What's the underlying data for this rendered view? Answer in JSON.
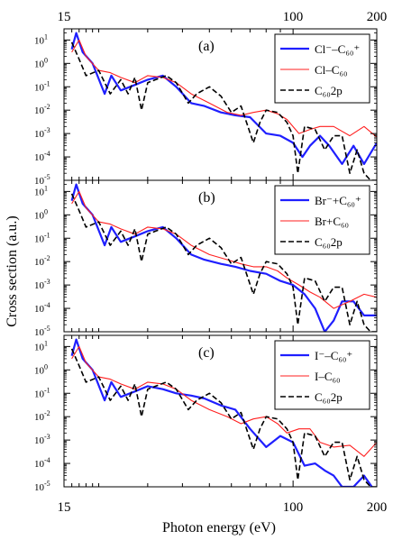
{
  "chart_data": {
    "type": "line",
    "x_scale": "log",
    "y_scale": "log",
    "xlim": [
      15,
      200
    ],
    "ylim": [
      1e-05,
      30
    ],
    "xlabel": "Photon energy (eV)",
    "ylabel": "Cross section (a.u.)",
    "x_tick_labels": [
      "15",
      "100",
      "200"
    ],
    "y_tick_labels": [
      "10",
      "10",
      "10",
      "10",
      "10",
      "10",
      "10"
    ],
    "y_tick_exponents": [
      "-5",
      "-4",
      "-3",
      "-2",
      "-1",
      "0",
      "1"
    ],
    "colors": {
      "anion": "#1f1fff",
      "neutral": "#ff1f1f",
      "c60": "#000000"
    },
    "panels": [
      {
        "label": "(a)",
        "legend_placement": "top-right",
        "series": [
          {
            "name": "Cl⁻–C₆₀⁺",
            "style": "anion",
            "x": [
              16,
              16.6,
              17.5,
              19,
              21,
              22.2,
              24,
              27,
              30,
              34,
              38,
              43,
              48,
              55,
              62,
              70,
              80,
              90,
              100,
              108,
              115,
              125,
              135,
              150,
              165,
              180,
              200
            ],
            "y": [
              4,
              20,
              3,
              1,
              0.05,
              0.3,
              0.07,
              0.12,
              0.2,
              0.3,
              0.1,
              0.02,
              0.015,
              0.008,
              0.006,
              0.005,
              0.001,
              0.0008,
              0.0004,
              0.0001,
              0.0003,
              0.0008,
              0.0003,
              5e-05,
              0.0003,
              5e-05,
              0.0004
            ]
          },
          {
            "name": "Cl–C₆₀",
            "style": "neutral",
            "x": [
              16,
              17,
              18,
              20,
              22,
              24,
              27,
              30,
              34,
              38,
              43,
              50,
              58,
              65,
              72,
              80,
              88,
              95,
              105,
              115,
              125,
              140,
              160,
              180,
              200
            ],
            "y": [
              3,
              10,
              2,
              0.5,
              0.4,
              0.25,
              0.15,
              0.3,
              0.25,
              0.15,
              0.05,
              0.02,
              0.008,
              0.006,
              0.008,
              0.01,
              0.007,
              0.004,
              0.001,
              0.0015,
              0.002,
              0.002,
              0.0008,
              0.002,
              0.0007
            ]
          },
          {
            "name": "C₆₀2p",
            "style": "c60",
            "x": [
              16,
              17,
              18,
              20,
              22,
              24,
              25.5,
              27,
              28.5,
              30,
              32,
              35,
              38,
              42,
              45,
              50,
              55,
              60,
              65,
              72,
              76,
              80,
              88,
              95,
              100,
              104,
              110,
              120,
              130,
              140,
              150,
              160,
              170,
              180,
              190,
              200
            ],
            "y": [
              8,
              1.5,
              0.3,
              0.5,
              0.05,
              0.2,
              0.05,
              0.25,
              0.01,
              0.15,
              0.2,
              0.3,
              0.15,
              0.02,
              0.05,
              0.1,
              0.04,
              0.008,
              0.015,
              0.0004,
              0.003,
              0.01,
              0.008,
              0.003,
              0.0008,
              2e-05,
              0.002,
              0.0015,
              0.0002,
              0.0008,
              0.0008,
              2e-05,
              0.0002,
              2e-05,
              1e-05,
              1e-05
            ]
          }
        ]
      },
      {
        "label": "(b)",
        "legend_placement": "top-right",
        "series": [
          {
            "name": "Br⁻+C₆₀⁺",
            "style": "anion",
            "x": [
              16,
              16.6,
              17.5,
              19,
              21,
              22.2,
              24,
              27,
              30,
              34,
              38,
              43,
              48,
              55,
              62,
              70,
              80,
              90,
              100,
              110,
              120,
              130,
              140,
              150,
              165,
              180,
              200
            ],
            "y": [
              4,
              20,
              3,
              1,
              0.05,
              0.3,
              0.07,
              0.12,
              0.2,
              0.3,
              0.1,
              0.02,
              0.012,
              0.008,
              0.006,
              0.004,
              0.003,
              0.0015,
              0.001,
              0.0004,
              0.0001,
              1e-05,
              3e-05,
              0.0002,
              0.0002,
              5e-05,
              5e-05
            ]
          },
          {
            "name": "Br+C₆₀",
            "style": "neutral",
            "x": [
              16,
              17,
              18,
              20,
              22,
              24,
              27,
              30,
              34,
              38,
              43,
              50,
              58,
              65,
              72,
              80,
              88,
              95,
              105,
              115,
              125,
              140,
              160,
              180,
              200
            ],
            "y": [
              3,
              10,
              2,
              0.5,
              0.4,
              0.25,
              0.15,
              0.3,
              0.25,
              0.15,
              0.05,
              0.02,
              0.012,
              0.008,
              0.006,
              0.006,
              0.004,
              0.002,
              0.001,
              0.0005,
              0.0003,
              0.0001,
              0.0002,
              0.0004,
              0.0003
            ]
          },
          {
            "name": "C₆₀2p",
            "style": "c60",
            "x": [
              16,
              17,
              18,
              20,
              22,
              24,
              25.5,
              27,
              28.5,
              30,
              32,
              35,
              38,
              42,
              45,
              50,
              55,
              60,
              65,
              72,
              76,
              80,
              88,
              95,
              100,
              104,
              110,
              120,
              130,
              140,
              150,
              160,
              170,
              180,
              190,
              200
            ],
            "y": [
              8,
              1.5,
              0.3,
              0.5,
              0.05,
              0.2,
              0.05,
              0.25,
              0.01,
              0.15,
              0.2,
              0.3,
              0.15,
              0.02,
              0.05,
              0.1,
              0.04,
              0.008,
              0.015,
              0.0004,
              0.003,
              0.01,
              0.008,
              0.003,
              0.0008,
              2e-05,
              0.002,
              0.0015,
              0.0002,
              0.0008,
              0.0008,
              2e-05,
              0.0002,
              2e-05,
              1e-05,
              1e-05
            ]
          }
        ]
      },
      {
        "label": "(c)",
        "legend_placement": "top-right",
        "series": [
          {
            "name": "I⁻–C₆₀⁺",
            "style": "anion",
            "x": [
              16,
              16.6,
              17.5,
              19,
              21,
              22.2,
              24,
              27,
              30,
              34,
              38,
              43,
              48,
              55,
              62,
              70,
              80,
              90,
              100,
              110,
              120,
              130,
              140,
              150,
              165,
              180,
              200
            ],
            "y": [
              4,
              20,
              3,
              1,
              0.05,
              0.3,
              0.07,
              0.12,
              0.2,
              0.15,
              0.1,
              0.08,
              0.06,
              0.03,
              0.02,
              0.003,
              0.0005,
              0.0015,
              0.0008,
              8e-05,
              0.0001,
              5e-05,
              3e-05,
              1e-05,
              1e-05,
              3e-05,
              5e-06
            ]
          },
          {
            "name": "I–C₆₀",
            "style": "neutral",
            "x": [
              16,
              17,
              18,
              20,
              22,
              24,
              27,
              30,
              34,
              38,
              43,
              50,
              58,
              65,
              72,
              80,
              88,
              95,
              105,
              115,
              125,
              140,
              160,
              180,
              200
            ],
            "y": [
              3,
              10,
              2,
              0.5,
              0.4,
              0.25,
              0.15,
              0.3,
              0.25,
              0.15,
              0.05,
              0.02,
              0.01,
              0.005,
              0.008,
              0.01,
              0.005,
              0.002,
              0.003,
              0.003,
              0.0008,
              0.0005,
              0.0006,
              0.0002,
              0.0008
            ]
          },
          {
            "name": "C₆₀2p",
            "style": "c60",
            "x": [
              16,
              17,
              18,
              20,
              22,
              24,
              25.5,
              27,
              28.5,
              30,
              32,
              35,
              38,
              42,
              45,
              50,
              55,
              60,
              65,
              72,
              76,
              80,
              88,
              95,
              100,
              104,
              110,
              120,
              130,
              140,
              150,
              160,
              170,
              180,
              190,
              200
            ],
            "y": [
              8,
              1.5,
              0.3,
              0.5,
              0.05,
              0.2,
              0.05,
              0.25,
              0.01,
              0.15,
              0.2,
              0.3,
              0.15,
              0.02,
              0.05,
              0.1,
              0.04,
              0.008,
              0.015,
              0.0004,
              0.003,
              0.01,
              0.008,
              0.003,
              0.0008,
              2e-05,
              0.002,
              0.0015,
              0.0002,
              0.0008,
              0.0008,
              2e-05,
              0.0002,
              2e-05,
              1e-05,
              1e-05
            ]
          }
        ]
      }
    ]
  }
}
